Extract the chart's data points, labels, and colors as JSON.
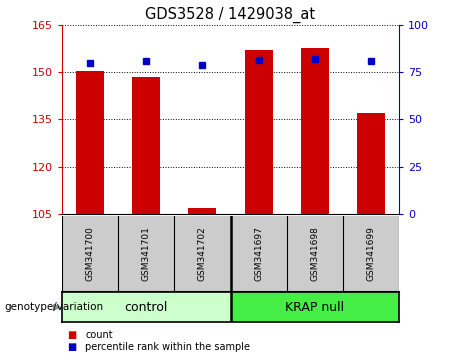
{
  "title": "GDS3528 / 1429038_at",
  "samples": [
    "GSM341700",
    "GSM341701",
    "GSM341702",
    "GSM341697",
    "GSM341698",
    "GSM341699"
  ],
  "red_values": [
    150.5,
    148.5,
    107.0,
    157.0,
    157.5,
    137.0
  ],
  "blue_values": [
    80.0,
    81.0,
    79.0,
    81.5,
    82.0,
    81.0
  ],
  "ylim_left": [
    105,
    165
  ],
  "ylim_right": [
    0,
    100
  ],
  "yticks_left": [
    105,
    120,
    135,
    150,
    165
  ],
  "yticks_right": [
    0,
    25,
    50,
    75,
    100
  ],
  "bar_color": "#CC0000",
  "dot_color": "#0000CC",
  "xlabel": "genotype/variation",
  "legend_count": "count",
  "legend_pct": "percentile rank within the sample",
  "control_color": "#ccffcc",
  "krap_color": "#44ee44",
  "label_bg": "#cccccc"
}
